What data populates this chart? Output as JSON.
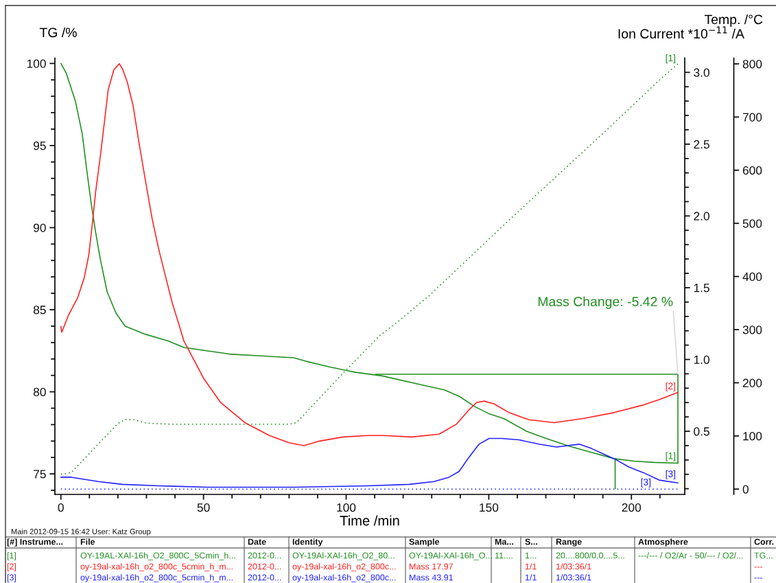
{
  "chart_data": {
    "type": "line",
    "xlabel": "Time /min",
    "ylabel": "TG /%",
    "y2label": "Ion Current *10$^{−11}$ /A",
    "y3label": "Temp. /°C",
    "xlim": [
      -2.1,
      218.7
    ],
    "xticks": [
      0,
      {
        "value": 10,
        "label": null
      },
      {
        "value": 20,
        "label": null
      },
      {
        "value": 30,
        "label": null
      },
      {
        "value": 40,
        "label": null
      },
      50,
      {
        "value": 60,
        "label": null
      },
      {
        "value": 70,
        "label": null
      },
      {
        "value": 80,
        "label": null
      },
      {
        "value": 90,
        "label": null
      },
      100,
      {
        "value": 110,
        "label": null
      },
      {
        "value": 120,
        "label": null
      },
      {
        "value": 130,
        "label": null
      },
      {
        "value": 140,
        "label": null
      },
      150,
      {
        "value": 160,
        "label": null
      },
      {
        "value": 170,
        "label": null
      },
      {
        "value": 180,
        "label": null
      },
      {
        "value": 190,
        "label": null
      },
      200,
      {
        "value": 210,
        "label": null
      }
    ],
    "ylim": [
      73.75,
      100.33
    ],
    "yticks": [
      {
        "value": 74,
        "label": null
      },
      75,
      {
        "value": 76,
        "label": null
      },
      {
        "value": 77,
        "label": null
      },
      {
        "value": 78,
        "label": null
      },
      {
        "value": 79,
        "label": null
      },
      80,
      {
        "value": 81,
        "label": null
      },
      {
        "value": 82,
        "label": null
      },
      {
        "value": 83,
        "label": null
      },
      {
        "value": 84,
        "label": null
      },
      85,
      {
        "value": 86,
        "label": null
      },
      {
        "value": 87,
        "label": null
      },
      {
        "value": 88,
        "label": null
      },
      {
        "value": 89,
        "label": null
      },
      90,
      {
        "value": 91,
        "label": null
      },
      {
        "value": 92,
        "label": null
      },
      {
        "value": 93,
        "label": null
      },
      {
        "value": 94,
        "label": null
      },
      95,
      {
        "value": 96,
        "label": null
      },
      {
        "value": 97,
        "label": null
      },
      {
        "value": 98,
        "label": null
      },
      {
        "value": 99,
        "label": null
      },
      100
    ],
    "y2lim": [
      0.06,
      3.1
    ],
    "y2ticks": [
      {
        "value": 0.1,
        "label": null
      },
      {
        "value": 0.2,
        "label": null
      },
      {
        "value": 0.3,
        "label": null
      },
      {
        "value": 0.4,
        "label": null
      },
      {
        "value": 0.5,
        "label": "0.5"
      },
      {
        "value": 0.6,
        "label": null
      },
      {
        "value": 0.7,
        "label": null
      },
      {
        "value": 0.8,
        "label": null
      },
      {
        "value": 0.9,
        "label": null
      },
      {
        "value": 1,
        "label": "1.0"
      },
      {
        "value": 1.1,
        "label": null
      },
      {
        "value": 1.2,
        "label": null
      },
      {
        "value": 1.3,
        "label": null
      },
      {
        "value": 1.4,
        "label": null
      },
      {
        "value": 1.5,
        "label": "1.5"
      },
      {
        "value": 1.6,
        "label": null
      },
      {
        "value": 1.7,
        "label": null
      },
      {
        "value": 1.8,
        "label": null
      },
      {
        "value": 1.9,
        "label": null
      },
      {
        "value": 2,
        "label": "2.0"
      },
      {
        "value": 2.1,
        "label": null
      },
      {
        "value": 2.2,
        "label": null
      },
      {
        "value": 2.3,
        "label": null
      },
      {
        "value": 2.4,
        "label": null
      },
      {
        "value": 2.5,
        "label": "2.5"
      },
      {
        "value": 2.6,
        "label": null
      },
      {
        "value": 2.7,
        "label": null
      },
      {
        "value": 2.8,
        "label": null
      },
      {
        "value": 2.9,
        "label": null
      },
      {
        "value": 3,
        "label": "3.0"
      }
    ],
    "y3lim": [
      -10,
      811
    ],
    "y3ticks": [
      0,
      100,
      200,
      300,
      400,
      500,
      600,
      700,
      800
    ],
    "series": [
      {
        "name": "[1]",
        "color": "#1f8f1f",
        "line_style": "solid",
        "x": [
          0,
          1.9,
          5.1,
          7.5,
          9.0,
          10.6,
          12.2,
          13.8,
          16.2,
          19.3,
          22.5,
          29.7,
          37.6,
          43.1,
          59,
          68.9,
          81.7,
          85.9,
          94.6,
          103.2,
          112.6,
          126.5,
          134.4,
          139.6,
          144.9,
          150.1,
          155.4,
          163.2,
          170.3,
          178.2,
          186,
          193.9,
          200.9,
          207.9,
          216.3
        ],
        "values": [
          100,
          99.4,
          97.7,
          95.7,
          93.6,
          91.5,
          89.7,
          88.1,
          86.1,
          84.8,
          84.0,
          83.5,
          83.1,
          82.7,
          82.3,
          82.2,
          82.07,
          81.86,
          81.5,
          81.19,
          80.97,
          80.42,
          80.12,
          79.73,
          79.12,
          78.66,
          78.36,
          77.6,
          77.15,
          76.69,
          76.31,
          75.93,
          75.78,
          75.7,
          75.65
        ]
      },
      {
        "name": "[1]",
        "color": "#1f8f1f",
        "line_style": "dotted",
        "axis": "y3",
        "x": [
          0,
          3.6,
          19.9,
          22.5,
          25.1,
          30.2,
          38.8,
          80,
          82.6,
          90.3,
          98.9,
          111.8,
          118.6,
          129.1,
          157.1,
          192.2,
          209.7,
          216.3
        ],
        "values": [
          28,
          31,
          123,
          131,
          131,
          124,
          122,
          122,
          125,
          169,
          218,
          289,
          317,
          364,
          506,
          680,
          769,
          800
        ]
      },
      {
        "name": "[2]",
        "color": "#ff2020",
        "line_style": "solid",
        "axis": "y2",
        "x": [
          0,
          0.3,
          2.7,
          5.9,
          8.2,
          9.8,
          11.0,
          12.2,
          13.8,
          15.0,
          16.6,
          18.6,
          20.5,
          21.7,
          23.3,
          25.3,
          27.3,
          29.7,
          32.0,
          34.4,
          36.8,
          39.1,
          41.6,
          43.1,
          50,
          56,
          64.5,
          73.1,
          80,
          85.2,
          90.3,
          98.9,
          107.5,
          113.3,
          122.9,
          132.6,
          138.7,
          143.1,
          145.7,
          148.4,
          151.9,
          157.1,
          164.1,
          172.9,
          183.4,
          193.9,
          203.6,
          209.7,
          216.3
        ],
        "values": [
          1.23,
          1.19,
          1.31,
          1.43,
          1.57,
          1.73,
          1.94,
          2.17,
          2.41,
          2.61,
          2.88,
          3.02,
          3.06,
          3.02,
          2.93,
          2.77,
          2.52,
          2.24,
          1.98,
          1.76,
          1.57,
          1.39,
          1.23,
          1.13,
          0.87,
          0.7,
          0.56,
          0.47,
          0.42,
          0.4,
          0.43,
          0.46,
          0.47,
          0.47,
          0.46,
          0.48,
          0.55,
          0.65,
          0.7,
          0.71,
          0.69,
          0.63,
          0.58,
          0.56,
          0.59,
          0.63,
          0.68,
          0.72,
          0.77
        ]
      },
      {
        "name": "[3]",
        "color": "#2020ff",
        "line_style": "solid",
        "axis": "y2",
        "x": [
          0,
          3.6,
          13.1,
          21.6,
          34.5,
          51.7,
          81.7,
          107.5,
          122.1,
          130.8,
          136.1,
          139.6,
          143.1,
          146.6,
          150.1,
          154.5,
          160.6,
          167.6,
          173.8,
          181.7,
          186,
          190.4,
          194.8,
          199.2,
          204.4,
          209.7,
          216.3
        ],
        "values": [
          0.18,
          0.18,
          0.15,
          0.13,
          0.12,
          0.11,
          0.11,
          0.12,
          0.13,
          0.15,
          0.18,
          0.22,
          0.32,
          0.41,
          0.45,
          0.45,
          0.44,
          0.41,
          0.39,
          0.41,
          0.38,
          0.34,
          0.3,
          0.25,
          0.21,
          0.16,
          0.14
        ]
      },
      {
        "name": "[3]",
        "color": "#2020ff",
        "line_style": "dotted",
        "axis": "y3",
        "x": [
          0,
          216.3
        ],
        "values": [
          0,
          0
        ]
      },
      {
        "color": "#1f8f1f",
        "line_style": "solid",
        "x": [
          110.4,
          216.3,
          216.3
        ],
        "values": [
          81.07,
          81.07,
          75.65
        ]
      },
      {
        "color": "#1f8f1f",
        "line_style": "solid",
        "x": [
          194.3,
          194.3
        ],
        "values": [
          75.93,
          74.1
        ]
      }
    ],
    "annotations": [
      {
        "text": "Mass Change: -5.42 %",
        "x": 216.3,
        "y": 81.07
      },
      "Main 2012-09-15 16:42 User: Katz Group",
      "[#] Instrume...\tFile\tDate\tIdentity\tSample\tMa...\tS...\tRange\tAtmosphere\tCorr.",
      "[1]\tOY-19AL-XAl-16h_O2_800C_5Cmin_h...\t2012-0...\tOY-19Al-XAl-16h_O2_80...\tOY-19Al-XAl-16h_O...\t11....\t1...\t20....800/0.0....5...\t---/--- / O2/Ar - 50/--- / O2/...\tTG...",
      "[2]\toy-19al-xal-16h_o2_800c_5cmin_h_m...\t2012-0...\toy-19al-xal-16h_o2_800c...\tMass 17.97\t\t1/1\t1/03:36/1\t\t---",
      "[3]\toy-19al-xal-16h_o2_800c_5cmin_h_m...\t2012-0...\toy-19al-xal-16h_o2_800c...\tMass 43.91\t\t1/1\t1/03:36/1\t\t---"
    ]
  }
}
